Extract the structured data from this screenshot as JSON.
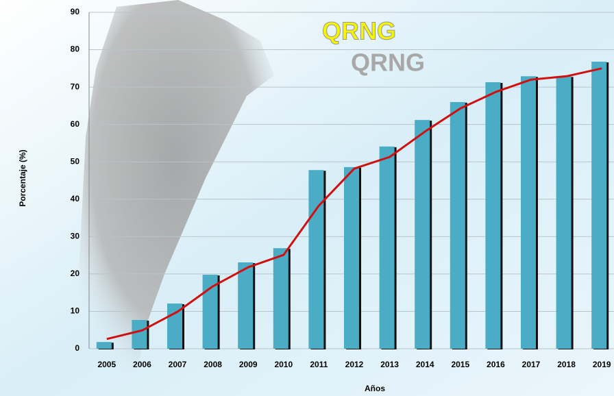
{
  "chart_data": {
    "type": "bar",
    "annotations": [
      "QRNG",
      "QRNG"
    ],
    "x_label": "Años",
    "y_label": "Porcentaje (%)",
    "categories": [
      "2005",
      "2006",
      "2007",
      "2008",
      "2009",
      "2010",
      "2011",
      "2012",
      "2013",
      "2014",
      "2015",
      "2016",
      "2017",
      "2018",
      "2019"
    ],
    "series": [
      {
        "type": "bar",
        "color": "#4bacc6",
        "values": [
          1.8,
          7.7,
          12.1,
          19.8,
          23.1,
          26.9,
          47.8,
          48.6,
          54.1,
          61.2,
          66.0,
          71.3,
          72.9,
          72.9,
          76.8
        ]
      },
      {
        "type": "line",
        "color": "#d01010",
        "values": [
          2.6,
          4.9,
          9.9,
          16.7,
          21.8,
          25.1,
          38.3,
          48.2,
          51.3,
          58.1,
          64.3,
          68.7,
          72.0,
          72.9,
          75.0
        ]
      }
    ],
    "ylim": [
      0,
      90
    ],
    "yticks": [
      0,
      10,
      20,
      30,
      40,
      50,
      60,
      70,
      80,
      90
    ],
    "grid": true
  }
}
